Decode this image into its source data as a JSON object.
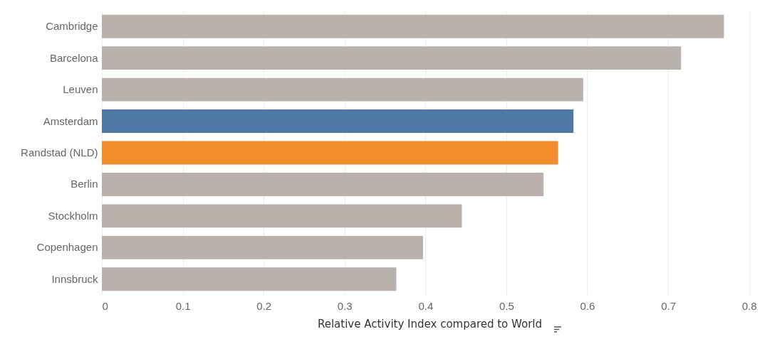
{
  "chart_data": {
    "type": "bar",
    "orientation": "horizontal",
    "xlabel": "Relative Activity Index compared to World",
    "categories": [
      "Cambridge",
      "Barcelona",
      "Leuven",
      "Amsterdam",
      "Randstad (NLD)",
      "Berlin",
      "Stockholm",
      "Copenhagen",
      "Innsbruck"
    ],
    "values": [
      0.769,
      0.716,
      0.595,
      0.583,
      0.564,
      0.546,
      0.445,
      0.397,
      0.364
    ],
    "colors": [
      "#bab0ac",
      "#bab0ac",
      "#bab0ac",
      "#4e79a7",
      "#f28e2b",
      "#bab0ac",
      "#bab0ac",
      "#bab0ac",
      "#bab0ac"
    ],
    "xlim": [
      0,
      0.81
    ],
    "xticks": [
      0,
      0.1,
      0.2,
      0.3,
      0.4,
      0.5,
      0.6,
      0.7,
      0.8
    ],
    "grid": "x"
  }
}
